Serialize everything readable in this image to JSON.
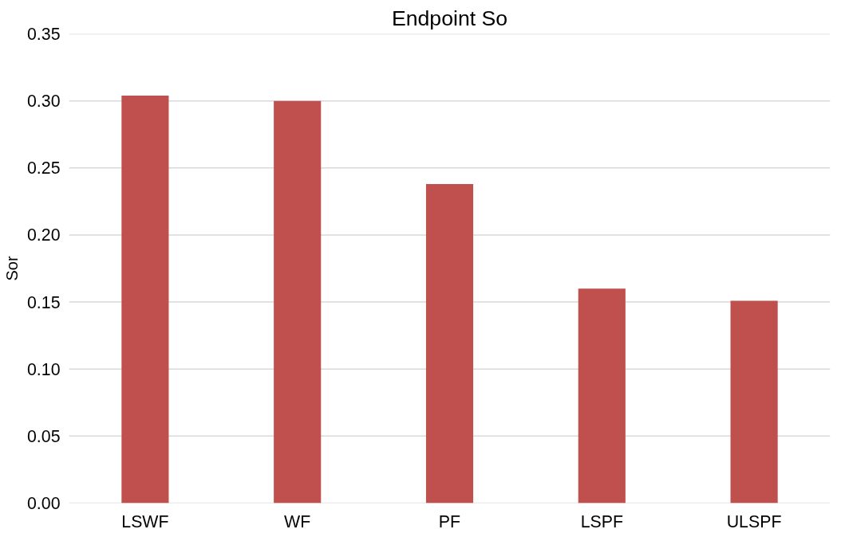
{
  "chart_data": {
    "type": "bar",
    "title": "Endpoint So",
    "ylabel": "Sor",
    "categories": [
      "LSWF",
      "WF",
      "PF",
      "LSPF",
      "ULSPF"
    ],
    "values": [
      0.304,
      0.3,
      0.238,
      0.16,
      0.151
    ],
    "color": "#c0504d",
    "ylim": [
      0,
      0.35
    ],
    "yticks": [
      {
        "value": 0,
        "label": "0.00"
      },
      {
        "value": 0.05,
        "label": "0.05"
      },
      {
        "value": 0.1,
        "label": "0.10"
      },
      {
        "value": 0.15,
        "label": "0.15"
      },
      {
        "value": 0.2,
        "label": "0.20"
      },
      {
        "value": 0.25,
        "label": "0.25"
      },
      {
        "value": 0.3,
        "label": "0.30"
      },
      {
        "value": 0.35,
        "label": "0.35"
      }
    ],
    "grid": "y"
  }
}
